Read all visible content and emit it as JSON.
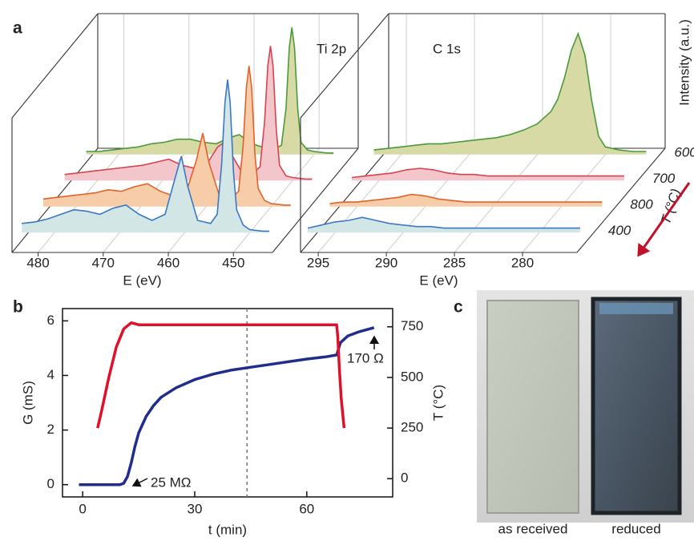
{
  "chart_data": [
    {
      "type": "waterfall",
      "panel_label": "a",
      "label": "Ti 2p",
      "x_label": "E (eV)",
      "xlim": [
        484,
        444
      ],
      "xticks": [
        480,
        470,
        460,
        450
      ],
      "ylim": [
        0,
        0.88
      ],
      "x": [
        485,
        483,
        481,
        479,
        477,
        475,
        473,
        471,
        469,
        467,
        465,
        463,
        461.5,
        460.5,
        459.5,
        458,
        456,
        455,
        454.3,
        453.8,
        453.4,
        453,
        452.5,
        452,
        451,
        450,
        448,
        447
      ],
      "series": [
        {
          "color": "#3b78c2",
          "fill": "#d3e6e6",
          "values": [
            0.06,
            0.07,
            0.09,
            0.12,
            0.15,
            0.14,
            0.12,
            0.16,
            0.18,
            0.12,
            0.08,
            0.12,
            0.35,
            0.5,
            0.3,
            0.08,
            0.06,
            0.12,
            0.45,
            0.85,
            1.0,
            0.85,
            0.4,
            0.15,
            0.05,
            0.02,
            0.01,
            0.01
          ]
        },
        {
          "color": "#e0622a",
          "fill": "#f6cda8",
          "values": [
            0.05,
            0.06,
            0.07,
            0.08,
            0.09,
            0.11,
            0.1,
            0.13,
            0.15,
            0.1,
            0.07,
            0.1,
            0.3,
            0.48,
            0.28,
            0.08,
            0.06,
            0.1,
            0.4,
            0.78,
            0.92,
            0.78,
            0.35,
            0.12,
            0.04,
            0.02,
            0.01,
            0.01
          ]
        },
        {
          "color": "#d9434f",
          "fill": "#f3c6cb",
          "values": [
            0.04,
            0.05,
            0.06,
            0.07,
            0.08,
            0.09,
            0.1,
            0.12,
            0.14,
            0.1,
            0.08,
            0.12,
            0.22,
            0.25,
            0.18,
            0.07,
            0.05,
            0.09,
            0.38,
            0.75,
            0.88,
            0.75,
            0.33,
            0.1,
            0.03,
            0.02,
            0.01,
            0.01
          ]
        },
        {
          "color": "#4a9a3a",
          "fill": "#d8daa6",
          "values": [
            0.02,
            0.02,
            0.03,
            0.04,
            0.05,
            0.07,
            0.08,
            0.1,
            0.1,
            0.08,
            0.07,
            0.11,
            0.13,
            0.1,
            0.07,
            0.05,
            0.04,
            0.06,
            0.3,
            0.7,
            0.83,
            0.7,
            0.3,
            0.08,
            0.03,
            0.02,
            0.01,
            0.01
          ]
        }
      ]
    },
    {
      "type": "waterfall",
      "label": "C 1s",
      "x_label": "E (eV)",
      "y_label": "Intensity (a.u.)",
      "z_label": "T (°C)",
      "xlim": [
        296.3,
        276
      ],
      "xticks": [
        295,
        290,
        285,
        280
      ],
      "ylim": [
        0,
        0.88
      ],
      "x": [
        297,
        296,
        295,
        294,
        293,
        292,
        291,
        290,
        289,
        288,
        287,
        286,
        285,
        284,
        283.5,
        283,
        282.5,
        282,
        281.5,
        281,
        280.5,
        280,
        279,
        278,
        277
      ],
      "series": [
        {
          "name": "400",
          "color": "#3b78c2",
          "fill": "#d3e6e6",
          "values": [
            0.03,
            0.05,
            0.07,
            0.08,
            0.1,
            0.08,
            0.06,
            0.05,
            0.04,
            0.04,
            0.03,
            0.03,
            0.03,
            0.03,
            0.03,
            0.03,
            0.03,
            0.03,
            0.03,
            0.03,
            0.03,
            0.03,
            0.03,
            0.03,
            0.03
          ]
        },
        {
          "name": "800",
          "color": "#e0622a",
          "fill": "#f6cda8",
          "values": [
            0.02,
            0.03,
            0.03,
            0.04,
            0.05,
            0.06,
            0.08,
            0.07,
            0.05,
            0.04,
            0.03,
            0.03,
            0.03,
            0.03,
            0.03,
            0.03,
            0.03,
            0.03,
            0.03,
            0.03,
            0.03,
            0.03,
            0.03,
            0.03,
            0.03
          ]
        },
        {
          "name": "700",
          "color": "#d9434f",
          "fill": "#f3c6cb",
          "values": [
            0.02,
            0.03,
            0.04,
            0.05,
            0.07,
            0.08,
            0.07,
            0.05,
            0.04,
            0.04,
            0.03,
            0.03,
            0.03,
            0.03,
            0.03,
            0.03,
            0.03,
            0.03,
            0.03,
            0.03,
            0.03,
            0.03,
            0.03,
            0.03,
            0.03
          ]
        },
        {
          "name": "600",
          "color": "#4a9a3a",
          "fill": "#d8daa6",
          "values": [
            0.03,
            0.04,
            0.05,
            0.06,
            0.07,
            0.07,
            0.08,
            0.09,
            0.1,
            0.11,
            0.13,
            0.16,
            0.2,
            0.28,
            0.36,
            0.5,
            0.68,
            0.79,
            0.65,
            0.35,
            0.12,
            0.05,
            0.03,
            0.02,
            0.02
          ]
        }
      ]
    },
    {
      "type": "line",
      "panel_label": "b",
      "x_label": "t (min)",
      "y_label": "G (mS)",
      "y2_label": "T (°C)",
      "xlim": [
        -5.4,
        83
      ],
      "xticks": [
        0,
        30,
        60
      ],
      "ylim": [
        -0.45,
        6.45
      ],
      "yticks": [
        0,
        2,
        4,
        6
      ],
      "y2lim": [
        -90,
        840
      ],
      "y2ticks": [
        0,
        250,
        500,
        750
      ],
      "vline": 44,
      "series": [
        {
          "color": "#1f2d8c",
          "x": [
            -1,
            10,
            11,
            12,
            13,
            14,
            15,
            17,
            19,
            21,
            25,
            30,
            35,
            40,
            45,
            50,
            55,
            60,
            65,
            68,
            69,
            71,
            74,
            78
          ],
          "values": [
            0,
            0,
            0.05,
            0.3,
            0.8,
            1.4,
            1.9,
            2.5,
            2.9,
            3.2,
            3.55,
            3.85,
            4.05,
            4.2,
            4.3,
            4.4,
            4.5,
            4.6,
            4.68,
            4.75,
            5.2,
            5.45,
            5.6,
            5.75
          ]
        },
        {
          "color": "#e0102a",
          "axis": "y2",
          "x": [
            4,
            5,
            7,
            9,
            11,
            13,
            15,
            30,
            60,
            68,
            68.3,
            68.7,
            69.2,
            70
          ],
          "values": [
            250,
            330,
            500,
            650,
            740,
            770,
            760,
            760,
            760,
            760,
            700,
            550,
            400,
            250
          ]
        }
      ],
      "annotations": [
        "25 MΩ",
        "170 Ω"
      ]
    }
  ],
  "photos": {
    "panel_label": "c",
    "captions": [
      "as received",
      "reduced"
    ]
  }
}
